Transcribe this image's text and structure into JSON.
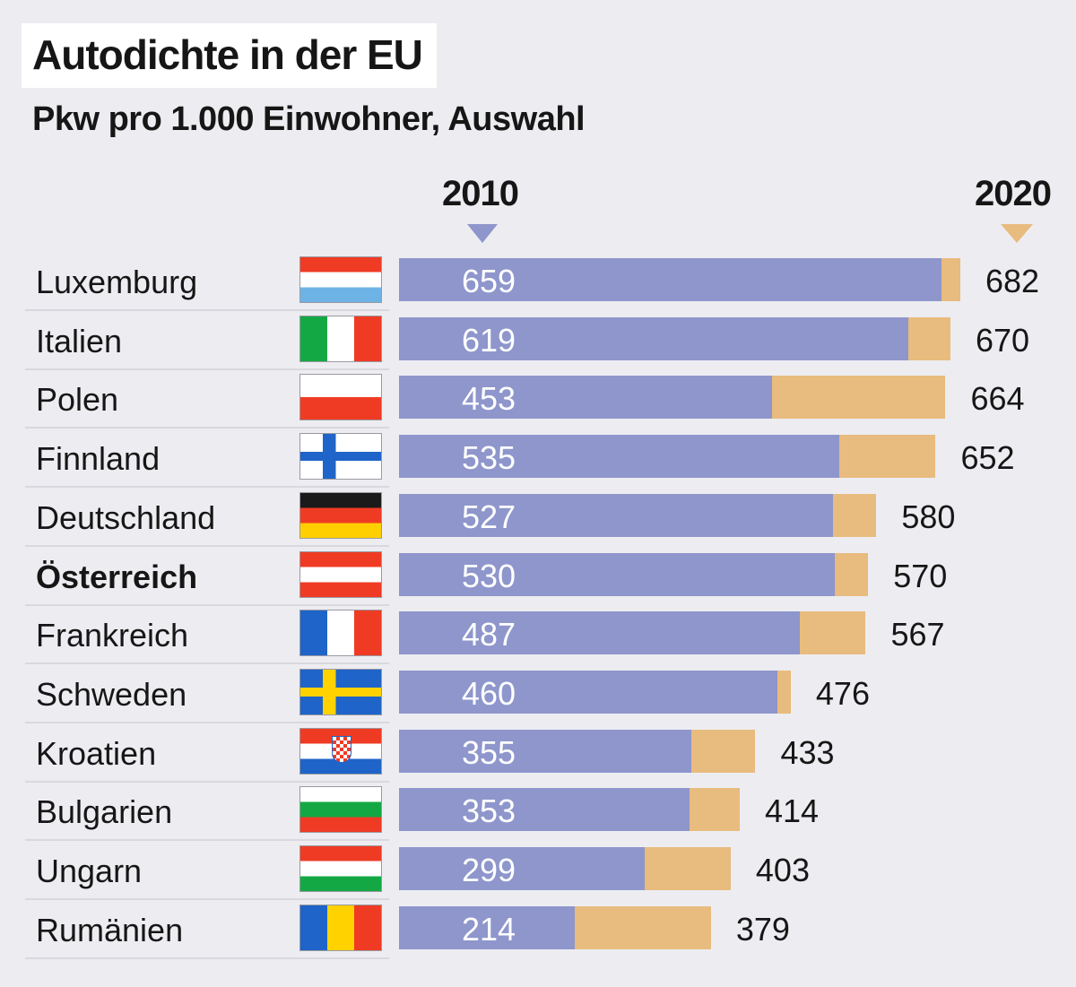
{
  "title": "Autodichte in der EU",
  "subtitle": "Pkw pro 1.000 Einwohner, Auswahl",
  "chart_data": {
    "type": "bar",
    "orientation": "horizontal",
    "title": "Autodichte in der EU",
    "subtitle": "Pkw pro 1.000 Einwohner, Auswahl",
    "categories": [
      "Luxemburg",
      "Italien",
      "Polen",
      "Finnland",
      "Deutschland",
      "Österreich",
      "Frankreich",
      "Schweden",
      "Kroatien",
      "Bulgarien",
      "Ungarn",
      "Rumänien"
    ],
    "highlight": "Österreich",
    "series": [
      {
        "name": "2010",
        "color": "#8e96cc",
        "values": [
          659,
          619,
          453,
          535,
          527,
          530,
          487,
          460,
          355,
          353,
          299,
          214
        ]
      },
      {
        "name": "2020",
        "color": "#e8bb7e",
        "values": [
          682,
          670,
          664,
          652,
          580,
          570,
          567,
          476,
          433,
          414,
          403,
          379
        ]
      }
    ],
    "flags": [
      "luxembourg-flag",
      "italy-flag",
      "poland-flag",
      "finland-flag",
      "germany-flag",
      "austria-flag",
      "france-flag",
      "sweden-flag",
      "croatia-flag",
      "bulgaria-flag",
      "hungary-flag",
      "romania-flag"
    ],
    "xlim": [
      0,
      682
    ],
    "grid": false,
    "legend": "top"
  }
}
